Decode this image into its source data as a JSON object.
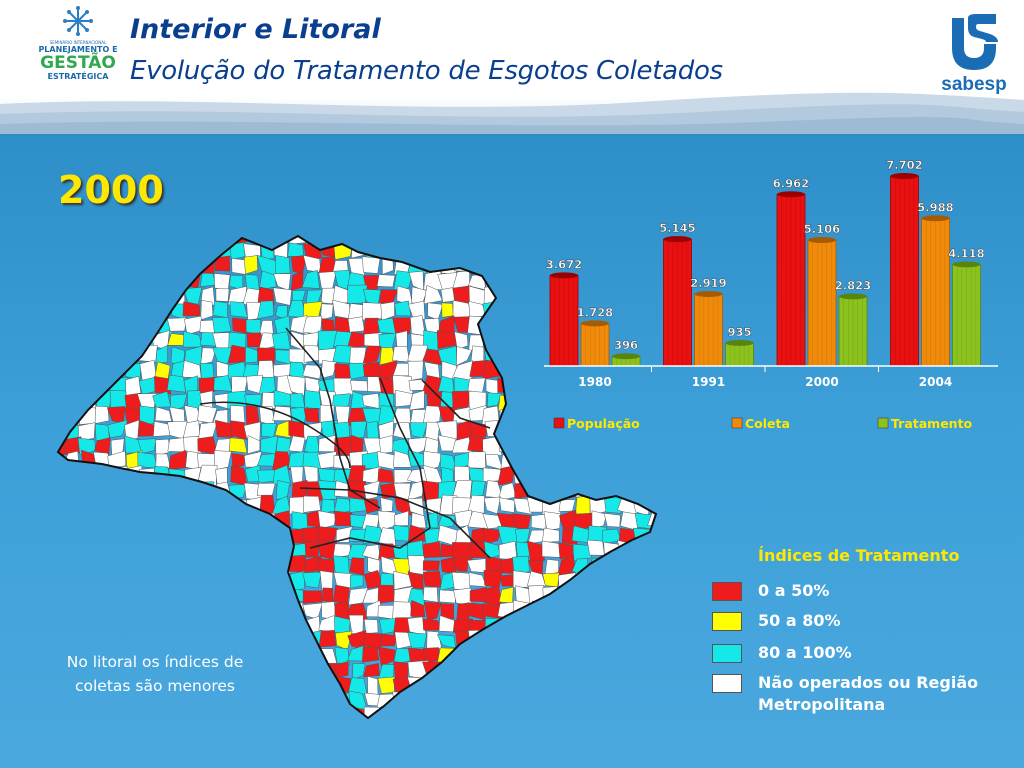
{
  "header": {
    "logo_left": {
      "small_text": "SEMINÁRIO INTERNACIONAL",
      "line1": "PLANEJAMENTO E",
      "line2": "GESTÃO",
      "line3": "ESTRATÉGICA"
    },
    "title": "Interior e Litoral",
    "subtitle": "Evolução do Tratamento de Esgotos Coletados",
    "logo_right": {
      "name": "sabesp"
    }
  },
  "main": {
    "year": "2000",
    "note": "No litoral os índices de coletas são menores",
    "legend": {
      "title": "Índices de Tratamento",
      "items": [
        {
          "label": "0 a 50%",
          "color": "#ee1c1c"
        },
        {
          "label": "50 a 80%",
          "color": "#ffff00"
        },
        {
          "label": "80 a 100%",
          "color": "#14e8e8"
        },
        {
          "label": "Não operados ou Região Metropolitana",
          "label_line1": "Não operados ou Região",
          "label_line2": "Metropolitana",
          "color": "#ffffff"
        }
      ]
    },
    "map": {
      "region_color_fractions": {
        "red": 0.18,
        "yellow": 0.03,
        "cyan": 0.34,
        "white": 0.45
      },
      "sea_color": "#4aa8de"
    }
  },
  "chart_data": {
    "type": "bar",
    "categories": [
      "1980",
      "1991",
      "2000",
      "2004"
    ],
    "series": [
      {
        "name": "População",
        "color": "#e81010",
        "values": [
          3672,
          5145,
          6962,
          7702
        ],
        "labels": [
          "3.672",
          "5.145",
          "6.962",
          "7.702"
        ]
      },
      {
        "name": "Coleta",
        "color": "#f08a0a",
        "values": [
          1728,
          2919,
          5106,
          5988
        ],
        "labels": [
          "1.728",
          "2.919",
          "5.106",
          "5.988"
        ]
      },
      {
        "name": "Tratamento",
        "color": "#8cc21e",
        "values": [
          396,
          935,
          2823,
          4118
        ],
        "labels": [
          "396",
          "935",
          "2.823",
          "4.118"
        ]
      }
    ],
    "ylim": [
      0,
      7702
    ],
    "legend_position": "bottom"
  }
}
